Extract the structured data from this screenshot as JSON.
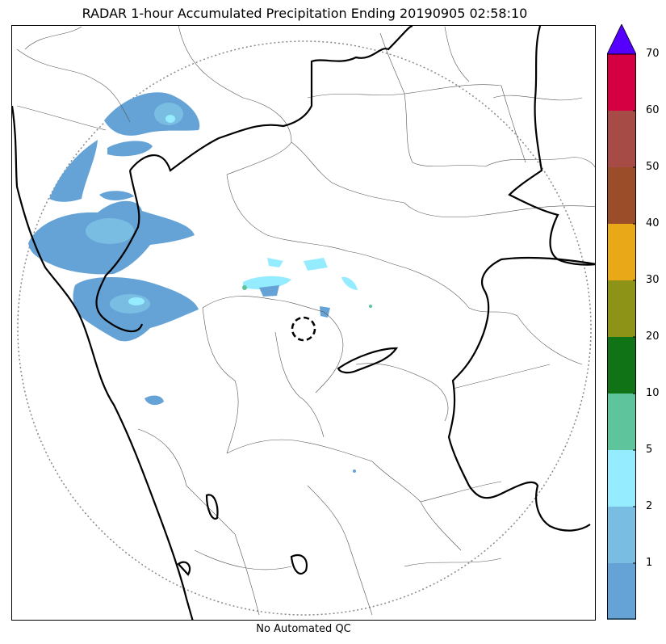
{
  "title": "RADAR 1-hour Accumulated Precipitation Ending 20190905 02:58:10",
  "footer_note": "No Automated QC",
  "colorbar": {
    "levels": [
      {
        "from": 0,
        "to": 1,
        "color": "#65a3d6"
      },
      {
        "from": 1,
        "to": 2,
        "color": "#79bde2"
      },
      {
        "from": 2,
        "to": 5,
        "color": "#96ecff"
      },
      {
        "from": 5,
        "to": 10,
        "color": "#5ec49c"
      },
      {
        "from": 10,
        "to": 20,
        "color": "#107316"
      },
      {
        "from": 20,
        "to": 30,
        "color": "#8c9316"
      },
      {
        "from": 30,
        "to": 40,
        "color": "#e8a818"
      },
      {
        "from": 40,
        "to": 50,
        "color": "#9a4d28"
      },
      {
        "from": 50,
        "to": 60,
        "color": "#a64b45"
      },
      {
        "from": 60,
        "to": 70,
        "color": "#d40042"
      }
    ],
    "over_color": "#5500ff",
    "tick_labels": [
      "1",
      "2",
      "5",
      "10",
      "20",
      "30",
      "40",
      "50",
      "60",
      "70"
    ]
  }
}
